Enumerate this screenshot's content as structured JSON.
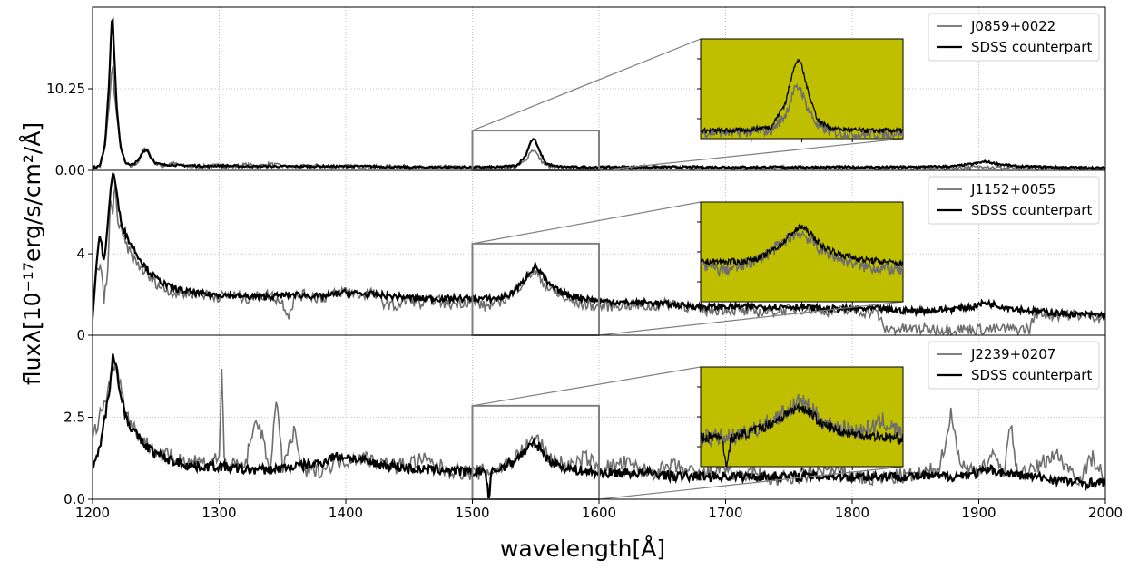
{
  "chart_data": {
    "type": "line",
    "xlabel": "wavelength[Å]",
    "ylabel": "fluxλ[10⁻¹⁷erg/s/cm²/Å]",
    "xlim": [
      1200,
      2000
    ],
    "x_ticks": [
      "1200",
      "1300",
      "1400",
      "1500",
      "1600",
      "1700",
      "1800",
      "1900",
      "2000"
    ],
    "grid": true,
    "zoom_box_x": [
      1500,
      1600
    ],
    "inset_background": "#bfbf00",
    "colors": {
      "object": "#6e6e6e",
      "sdss": "#000000",
      "grid": "#b0b0b0",
      "zoom_box": "#808080"
    },
    "panels": [
      {
        "ylim": [
          0,
          20.5
        ],
        "y_ticks": [
          {
            "value": 0,
            "label": "0.00"
          },
          {
            "value": 10.25,
            "label": "10.25"
          }
        ],
        "zoom_box_ytop": 5.0,
        "legend_position": "top-right",
        "series": [
          {
            "name": "J0859+0022",
            "x": [
              1200,
              1206,
              1210,
              1213,
              1215,
              1216,
              1217,
              1219,
              1222,
              1226,
              1230,
              1236,
              1240,
              1243,
              1246,
              1250,
              1255,
              1262,
              1270,
              1280,
              1290,
              1300,
              1310,
              1320,
              1330,
              1340,
              1350,
              1360,
              1370,
              1380,
              1390,
              1400,
              1420,
              1440,
              1460,
              1480,
              1500,
              1520,
              1535,
              1542,
              1546,
              1549,
              1553,
              1558,
              1565,
              1580,
              1600,
              1640,
              1680,
              1720,
              1760,
              1800,
              1840,
              1880,
              1900,
              1905,
              1910,
              1920,
              1940,
              1970,
              2000
            ],
            "y": [
              0.2,
              0.5,
              3.0,
              8.0,
              12.0,
              13.0,
              10.0,
              7.0,
              3.0,
              0.8,
              0.5,
              1.0,
              2.5,
              2.8,
              1.8,
              0.8,
              0.5,
              0.9,
              0.6,
              0.4,
              0.5,
              0.6,
              0.4,
              0.7,
              0.5,
              0.8,
              0.5,
              0.4,
              0.5,
              0.6,
              0.4,
              0.5,
              0.4,
              0.5,
              0.3,
              0.4,
              0.3,
              0.3,
              0.4,
              1.2,
              2.4,
              2.6,
              1.5,
              0.6,
              0.3,
              0.2,
              0.3,
              0.4,
              0.3,
              0.3,
              0.3,
              0.3,
              0.3,
              0.3,
              0.4,
              0.6,
              0.4,
              0.3,
              0.3,
              0.2,
              0.2
            ]
          },
          {
            "name": "SDSS counterpart",
            "x": [
              1200,
              1206,
              1210,
              1213,
              1215,
              1216,
              1217,
              1219,
              1222,
              1226,
              1230,
              1236,
              1240,
              1243,
              1246,
              1250,
              1255,
              1262,
              1270,
              1280,
              1290,
              1300,
              1320,
              1340,
              1360,
              1380,
              1400,
              1420,
              1440,
              1460,
              1480,
              1500,
              1520,
              1535,
              1542,
              1546,
              1549,
              1553,
              1558,
              1565,
              1580,
              1600,
              1640,
              1680,
              1720,
              1760,
              1800,
              1840,
              1880,
              1895,
              1905,
              1915,
              1930,
              1960,
              2000
            ],
            "y": [
              0.3,
              0.6,
              3.5,
              11.0,
              18.5,
              19.0,
              15.0,
              8.0,
              3.0,
              1.0,
              0.6,
              1.2,
              2.4,
              2.6,
              1.6,
              0.9,
              0.7,
              0.7,
              0.6,
              0.6,
              0.5,
              0.6,
              0.5,
              0.5,
              0.5,
              0.5,
              0.5,
              0.5,
              0.4,
              0.4,
              0.4,
              0.4,
              0.4,
              0.6,
              1.8,
              3.6,
              4.0,
              2.4,
              0.9,
              0.5,
              0.4,
              0.4,
              0.4,
              0.4,
              0.4,
              0.4,
              0.4,
              0.4,
              0.5,
              0.8,
              1.1,
              0.8,
              0.5,
              0.4,
              0.3
            ]
          }
        ]
      },
      {
        "ylim": [
          0,
          8.1
        ],
        "y_ticks": [
          {
            "value": 0,
            "label": "0"
          },
          {
            "value": 4,
            "label": "4"
          }
        ],
        "zoom_box_ytop": 4.5,
        "legend_position": "top-right",
        "series": [
          {
            "name": "J1152+0055",
            "x": [
              1200,
              1203,
              1206,
              1209,
              1212,
              1214,
              1216,
              1218,
              1220,
              1223,
              1226,
              1230,
              1235,
              1240,
              1245,
              1250,
              1255,
              1260,
              1270,
              1280,
              1290,
              1300,
              1310,
              1320,
              1330,
              1340,
              1350,
              1355,
              1360,
              1370,
              1380,
              1390,
              1400,
              1410,
              1420,
              1430,
              1440,
              1450,
              1460,
              1470,
              1480,
              1490,
              1500,
              1510,
              1520,
              1530,
              1540,
              1545,
              1550,
              1555,
              1560,
              1570,
              1580,
              1590,
              1600,
              1620,
              1640,
              1660,
              1680,
              1700,
              1720,
              1740,
              1760,
              1780,
              1800,
              1820,
              1825,
              1835,
              1860,
              1900,
              1940,
              1945,
              1960,
              1980,
              2000
            ],
            "y": [
              0.5,
              3.0,
              3.5,
              1.8,
              3.0,
              6.5,
              6.0,
              7.5,
              5.5,
              5.0,
              4.5,
              4.0,
              3.5,
              3.2,
              2.8,
              2.6,
              2.3,
              2.2,
              2.0,
              2.1,
              2.0,
              1.9,
              2.0,
              1.8,
              1.9,
              2.0,
              1.6,
              1.0,
              1.9,
              2.0,
              1.8,
              2.0,
              2.2,
              2.0,
              2.1,
              1.6,
              1.4,
              1.8,
              1.5,
              1.8,
              1.5,
              1.6,
              1.7,
              1.4,
              1.6,
              2.0,
              2.6,
              3.0,
              3.1,
              2.7,
              2.3,
              1.9,
              1.6,
              1.5,
              1.4,
              1.5,
              1.4,
              1.6,
              1.2,
              1.3,
              1.1,
              1.2,
              1.3,
              1.2,
              1.2,
              1.1,
              0.3,
              0.3,
              0.3,
              0.3,
              0.3,
              1.1,
              1.0,
              1.0,
              0.9
            ]
          },
          {
            "name": "SDSS counterpart",
            "x": [
              1200,
              1203,
              1206,
              1209,
              1212,
              1214,
              1216,
              1218,
              1220,
              1223,
              1226,
              1230,
              1235,
              1240,
              1245,
              1250,
              1255,
              1260,
              1270,
              1280,
              1290,
              1300,
              1320,
              1340,
              1360,
              1380,
              1400,
              1420,
              1440,
              1460,
              1480,
              1500,
              1520,
              1530,
              1540,
              1545,
              1550,
              1555,
              1560,
              1570,
              1580,
              1590,
              1600,
              1620,
              1640,
              1660,
              1680,
              1700,
              1720,
              1740,
              1760,
              1780,
              1800,
              1820,
              1840,
              1860,
              1880,
              1895,
              1905,
              1920,
              1940,
              1960,
              1980,
              2000
            ],
            "y": [
              0.8,
              3.5,
              5.0,
              3.5,
              5.5,
              7.0,
              8.0,
              7.5,
              6.5,
              5.5,
              5.0,
              4.5,
              4.0,
              3.5,
              3.1,
              2.8,
              2.6,
              2.4,
              2.2,
              2.1,
              2.0,
              2.0,
              1.9,
              1.9,
              2.0,
              1.9,
              2.1,
              2.0,
              1.9,
              1.8,
              1.8,
              1.8,
              1.8,
              2.0,
              2.6,
              3.1,
              3.4,
              3.0,
              2.5,
              2.1,
              1.9,
              1.8,
              1.7,
              1.6,
              1.6,
              1.5,
              1.4,
              1.4,
              1.4,
              1.4,
              1.4,
              1.3,
              1.3,
              1.3,
              1.2,
              1.2,
              1.3,
              1.4,
              1.6,
              1.4,
              1.2,
              1.1,
              1.0,
              1.0
            ]
          }
        ]
      },
      {
        "ylim": [
          0,
          5.0
        ],
        "y_ticks": [
          {
            "value": 0,
            "label": "0.0"
          },
          {
            "value": 2.5,
            "label": "2.5"
          }
        ],
        "zoom_box_ytop": 2.85,
        "legend_position": "top-right",
        "series": [
          {
            "name": "J2239+0207",
            "x": [
              1200,
              1205,
              1210,
              1215,
              1218,
              1222,
              1226,
              1230,
              1240,
              1250,
              1260,
              1270,
              1280,
              1290,
              1300,
              1302,
              1304,
              1310,
              1320,
              1330,
              1340,
              1345,
              1350,
              1360,
              1365,
              1370,
              1380,
              1390,
              1400,
              1410,
              1420,
              1440,
              1460,
              1480,
              1500,
              1520,
              1535,
              1545,
              1550,
              1555,
              1560,
              1570,
              1580,
              1590,
              1600,
              1620,
              1640,
              1660,
              1680,
              1700,
              1710,
              1720,
              1740,
              1760,
              1780,
              1800,
              1820,
              1840,
              1860,
              1870,
              1878,
              1885,
              1890,
              1900,
              1910,
              1920,
              1925,
              1930,
              1940,
              1960,
              1980,
              1990,
              2000
            ],
            "y": [
              1.8,
              2.5,
              3.0,
              3.8,
              4.3,
              3.5,
              2.8,
              2.3,
              1.8,
              1.4,
              1.3,
              1.2,
              1.2,
              1.1,
              1.3,
              3.9,
              1.2,
              1.0,
              1.0,
              2.5,
              0.9,
              3.0,
              1.0,
              2.1,
              0.9,
              0.8,
              0.9,
              1.1,
              1.2,
              1.3,
              1.2,
              1.0,
              1.2,
              0.9,
              0.8,
              0.9,
              1.3,
              1.7,
              1.9,
              1.6,
              1.3,
              1.1,
              1.0,
              1.3,
              0.9,
              1.1,
              0.8,
              1.0,
              0.7,
              1.0,
              0.6,
              0.8,
              0.6,
              0.7,
              0.9,
              0.7,
              0.6,
              0.7,
              0.8,
              1.1,
              2.6,
              1.2,
              0.9,
              0.9,
              1.3,
              0.9,
              2.3,
              0.9,
              0.8,
              1.4,
              0.6,
              1.3,
              0.6
            ]
          },
          {
            "name": "SDSS counterpart",
            "x": [
              1200,
              1205,
              1210,
              1214,
              1216,
              1218,
              1222,
              1226,
              1230,
              1240,
              1250,
              1260,
              1270,
              1280,
              1290,
              1300,
              1320,
              1340,
              1360,
              1380,
              1390,
              1400,
              1420,
              1440,
              1460,
              1480,
              1500,
              1510,
              1513,
              1515,
              1520,
              1530,
              1540,
              1545,
              1550,
              1555,
              1560,
              1570,
              1580,
              1600,
              1620,
              1640,
              1660,
              1680,
              1700,
              1720,
              1740,
              1760,
              1780,
              1800,
              1820,
              1840,
              1860,
              1880,
              1900,
              1910,
              1920,
              1940,
              1960,
              1980,
              2000
            ],
            "y": [
              0.8,
              1.5,
              2.5,
              3.6,
              4.5,
              4.2,
              3.2,
              2.6,
              2.2,
              1.7,
              1.4,
              1.2,
              1.1,
              1.0,
              1.0,
              1.0,
              0.9,
              0.9,
              1.0,
              1.1,
              1.3,
              1.3,
              1.1,
              1.0,
              0.9,
              0.9,
              0.8,
              0.9,
              0.0,
              0.8,
              0.9,
              1.1,
              1.4,
              1.6,
              1.7,
              1.5,
              1.2,
              1.0,
              0.9,
              0.8,
              0.8,
              0.8,
              0.7,
              0.7,
              0.7,
              0.7,
              0.7,
              0.7,
              0.7,
              0.7,
              0.7,
              0.7,
              0.7,
              0.7,
              0.8,
              0.9,
              0.8,
              0.7,
              0.6,
              0.5,
              0.5
            ]
          }
        ]
      }
    ]
  }
}
